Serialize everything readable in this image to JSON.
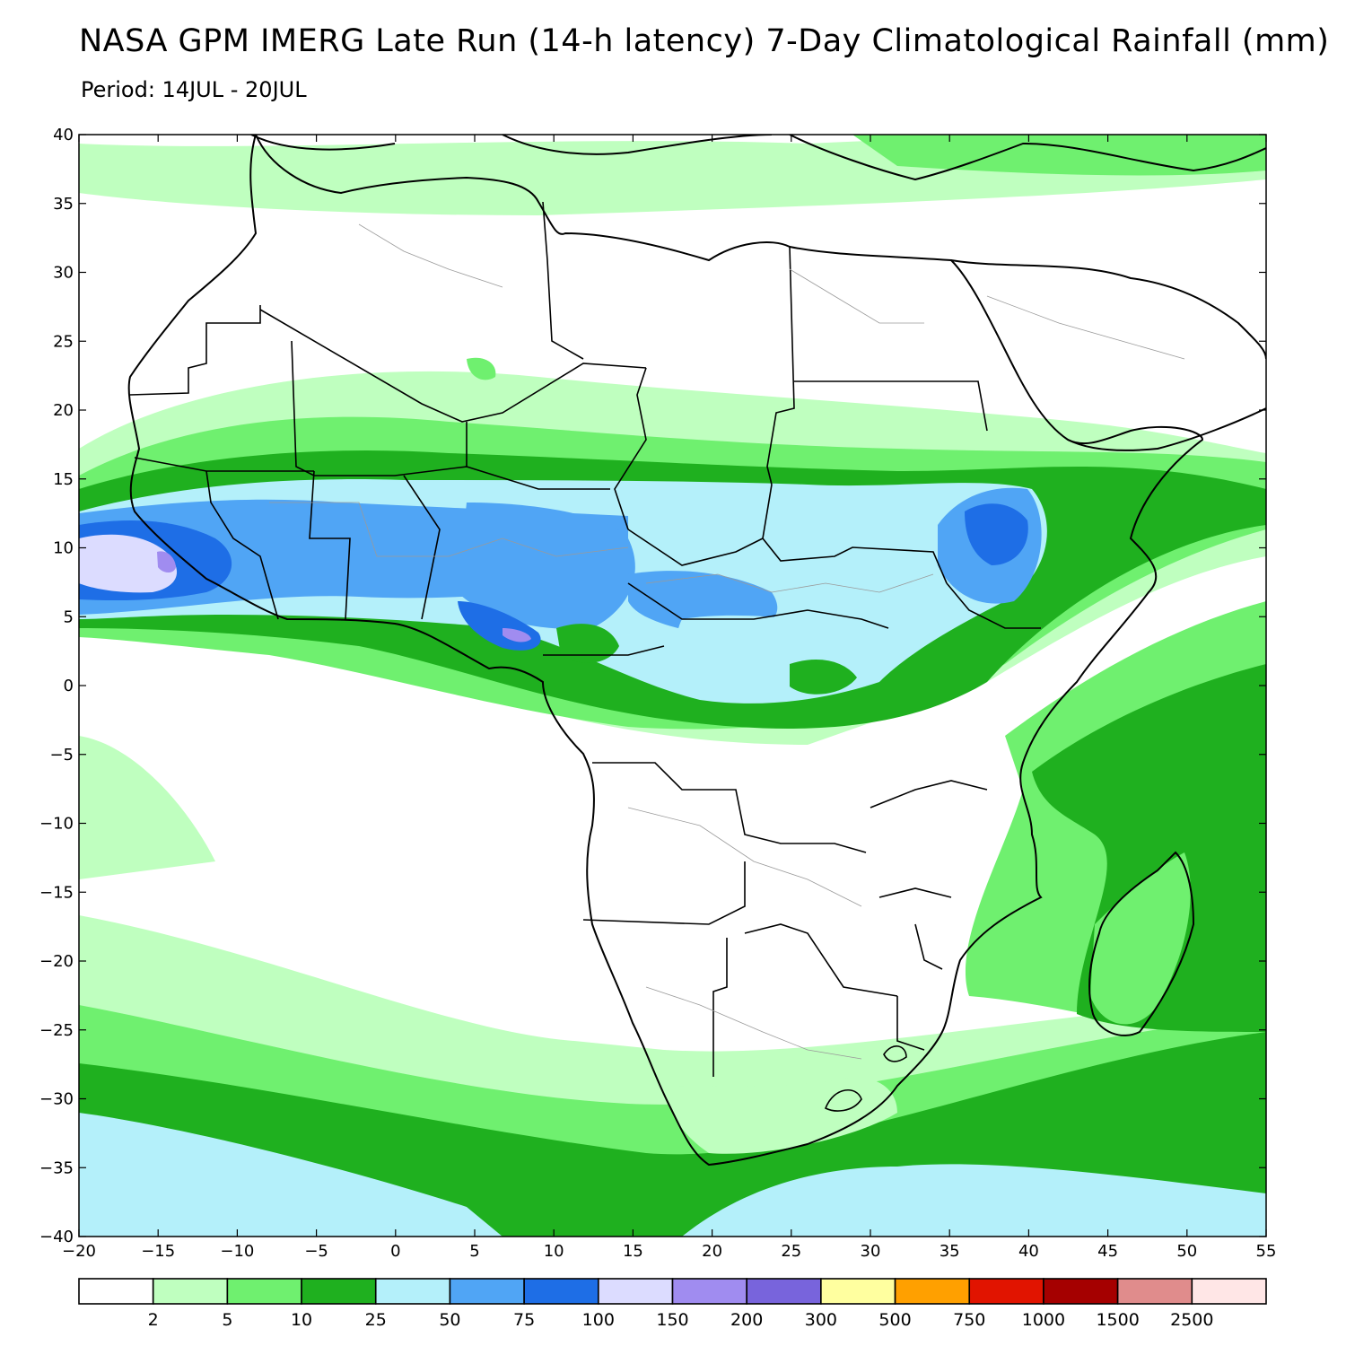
{
  "title": "NASA GPM IMERG Late Run (14-h latency) 7-Day Climatological Rainfall (mm)",
  "subtitle": "Period: 14JUL - 20JUL",
  "map": {
    "lon_range": [
      -20,
      55
    ],
    "lat_range": [
      -40,
      40
    ],
    "x_ticks": [
      "−20",
      "−15",
      "−10",
      "−5",
      "0",
      "5",
      "10",
      "15",
      "20",
      "25",
      "30",
      "35",
      "40",
      "45",
      "50",
      "55"
    ],
    "y_ticks": [
      "40",
      "35",
      "30",
      "25",
      "20",
      "15",
      "10",
      "5",
      "0",
      "−5",
      "−10",
      "−15",
      "−20",
      "−25",
      "−30",
      "−35",
      "−40"
    ]
  },
  "colorbar": {
    "colors": [
      "#ffffff",
      "#bfffbf",
      "#6ff06f",
      "#1fb01f",
      "#b4f0fa",
      "#50a5f5",
      "#1e6ee6",
      "#dcdcff",
      "#a08cf0",
      "#7864dc",
      "#ffff9f",
      "#ffa000",
      "#e11400",
      "#a50000",
      "#e08c8c",
      "#ffe6e6"
    ],
    "labels": [
      "2",
      "5",
      "10",
      "25",
      "50",
      "75",
      "100",
      "150",
      "200",
      "300",
      "500",
      "750",
      "1000",
      "1500",
      "2500"
    ]
  }
}
